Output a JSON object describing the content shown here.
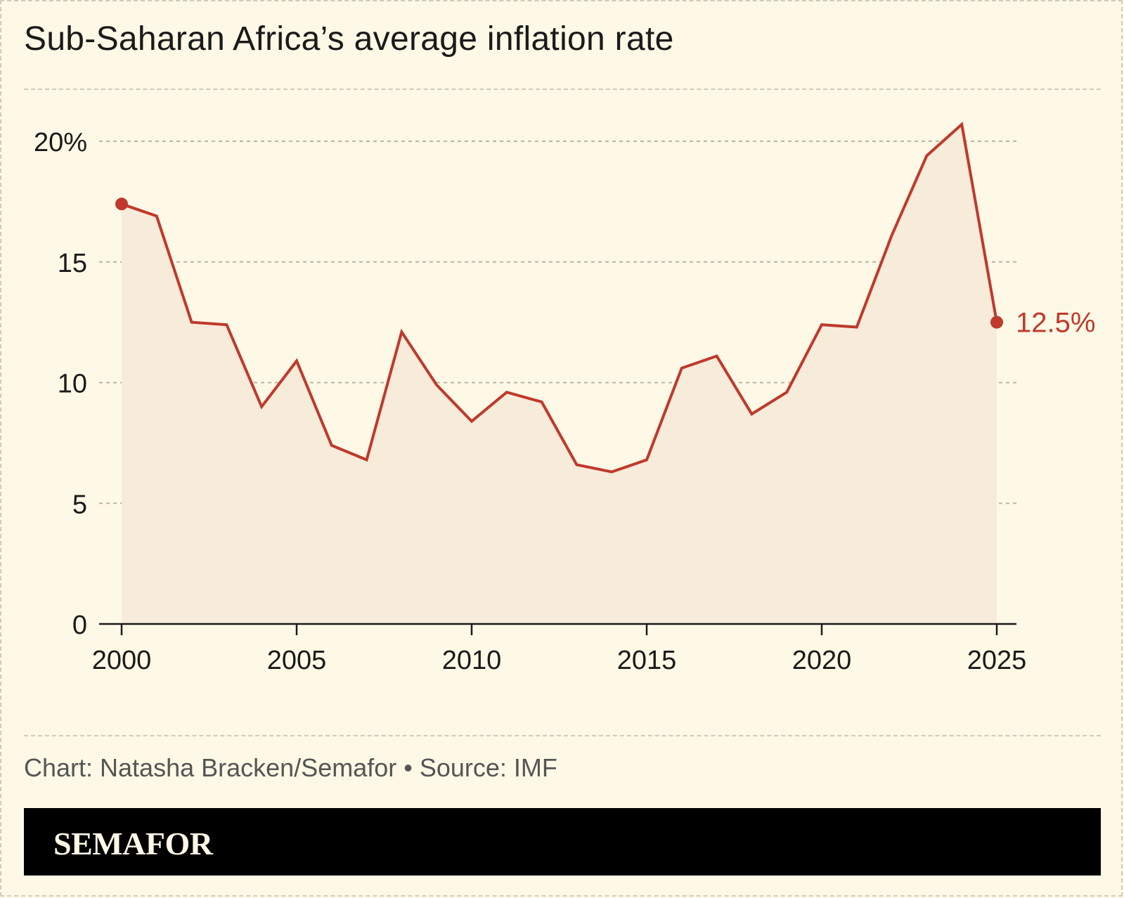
{
  "chart_data": {
    "type": "area",
    "title": "Sub-Saharan Africa’s average inflation rate",
    "x": [
      2000,
      2001,
      2002,
      2003,
      2004,
      2005,
      2006,
      2007,
      2008,
      2009,
      2010,
      2011,
      2012,
      2013,
      2014,
      2015,
      2016,
      2017,
      2018,
      2019,
      2020,
      2021,
      2022,
      2023,
      2024,
      2025
    ],
    "series": [
      {
        "values": [
          17.4,
          16.9,
          12.5,
          12.4,
          9.0,
          10.9,
          7.4,
          6.8,
          12.1,
          9.9,
          8.4,
          9.6,
          9.2,
          6.6,
          6.3,
          6.8,
          10.6,
          11.1,
          8.7,
          9.6,
          12.4,
          12.3,
          16.1,
          19.4,
          20.7,
          12.5
        ],
        "color": "#c0392b",
        "fill": "#f7ebda"
      }
    ],
    "xticks": [
      "2000",
      "2005",
      "2010",
      "2015",
      "2020",
      "2025"
    ],
    "yticks": [
      "0",
      "5",
      "10",
      "15",
      "20%"
    ],
    "ylim": [
      0,
      20
    ],
    "xlim": [
      2000,
      2025
    ],
    "end_label": "12.5%",
    "grid": "horizontal dashed",
    "xlabel": "",
    "ylabel": ""
  },
  "credit": "Chart: Natasha Bracken/Semafor • Source: IMF",
  "brand": "SEMAFOR",
  "colors": {
    "background": "#fdf9e6",
    "line": "#c0392b",
    "area": "#f7ebda",
    "grid": "#b9b5a8",
    "footer": "#000000"
  }
}
